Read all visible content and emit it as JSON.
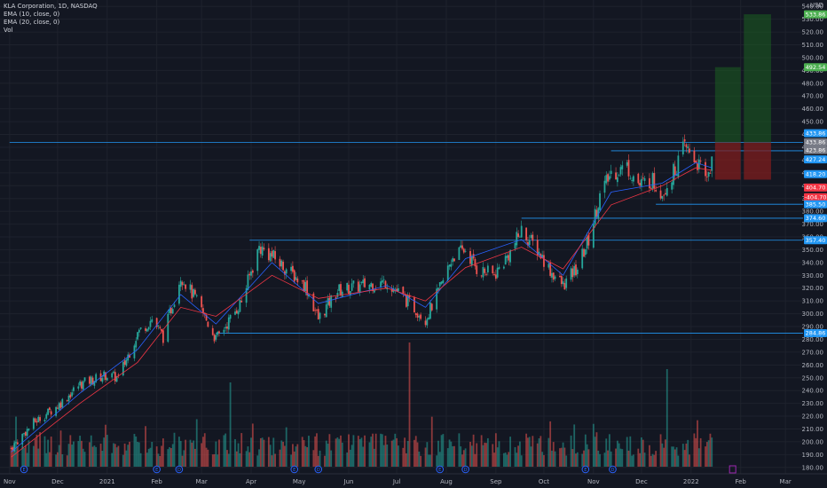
{
  "legend": {
    "title": "KLA Corporation, 1D, NASDAQ",
    "ema1": "EMA (10, close, 0)",
    "ema2": "EMA (20, close, 0)",
    "vol": "Vol"
  },
  "currency": "USD",
  "colors": {
    "background": "#131722",
    "up": "#26a69a",
    "down": "#ef5350",
    "ema_fast": "#2962ff",
    "ema_slow": "#f23645",
    "level_line": "#2196f3",
    "target_zone": "#1b5e20",
    "stop_zone": "#7f1d1d",
    "event_icon": "#2962ff",
    "future_marker": "#9c27b0"
  },
  "chart_data": {
    "type": "candlestick",
    "x_axis_labels": [
      "Nov",
      "Dec",
      "2021",
      "Feb",
      "Mar",
      "Apr",
      "May",
      "Jun",
      "Jul",
      "Aug",
      "Sep",
      "Oct",
      "Nov",
      "Dec",
      "2022",
      "Feb",
      "Mar"
    ],
    "x_axis_dates": [
      "2020-11-01",
      "2020-12-01",
      "2021-01-01",
      "2021-02-01",
      "2021-03-01",
      "2021-04-01",
      "2021-05-01",
      "2021-06-01",
      "2021-07-01",
      "2021-08-01",
      "2021-09-01",
      "2021-10-01",
      "2021-11-01",
      "2021-12-01",
      "2022-01-01",
      "2022-02-01",
      "2022-03-01"
    ],
    "y_ticks": [
      180,
      190,
      200,
      210,
      220,
      230,
      240,
      250,
      260,
      270,
      280,
      290,
      300,
      310,
      320,
      330,
      340,
      350,
      360,
      370,
      380,
      390,
      400,
      410,
      420,
      430,
      440,
      450,
      460,
      470,
      480,
      490,
      500,
      510,
      520,
      530,
      540
    ],
    "ylim": [
      175,
      545
    ],
    "price_series": [
      {
        "date": "2020-11-02",
        "close": 195
      },
      {
        "date": "2020-11-16",
        "close": 215
      },
      {
        "date": "2020-12-01",
        "close": 228
      },
      {
        "date": "2020-12-15",
        "close": 245
      },
      {
        "date": "2020-12-31",
        "close": 252
      },
      {
        "date": "2021-01-08",
        "close": 250
      },
      {
        "date": "2021-01-20",
        "close": 285
      },
      {
        "date": "2021-01-29",
        "close": 296
      },
      {
        "date": "2021-02-05",
        "close": 282
      },
      {
        "date": "2021-02-16",
        "close": 330
      },
      {
        "date": "2021-02-25",
        "close": 312
      },
      {
        "date": "2021-03-04",
        "close": 295
      },
      {
        "date": "2021-03-10",
        "close": 280
      },
      {
        "date": "2021-03-19",
        "close": 296
      },
      {
        "date": "2021-03-26",
        "close": 310
      },
      {
        "date": "2021-04-06",
        "close": 352
      },
      {
        "date": "2021-04-14",
        "close": 345
      },
      {
        "date": "2021-04-23",
        "close": 335
      },
      {
        "date": "2021-05-05",
        "close": 322
      },
      {
        "date": "2021-05-13",
        "close": 296
      },
      {
        "date": "2021-05-25",
        "close": 318
      },
      {
        "date": "2021-06-10",
        "close": 322
      },
      {
        "date": "2021-06-25",
        "close": 325
      },
      {
        "date": "2021-07-09",
        "close": 308
      },
      {
        "date": "2021-07-19",
        "close": 296
      },
      {
        "date": "2021-07-29",
        "close": 322
      },
      {
        "date": "2021-08-05",
        "close": 345
      },
      {
        "date": "2021-08-13",
        "close": 350
      },
      {
        "date": "2021-08-20",
        "close": 335
      },
      {
        "date": "2021-08-31",
        "close": 330
      },
      {
        "date": "2021-09-10",
        "close": 348
      },
      {
        "date": "2021-09-17",
        "close": 365
      },
      {
        "date": "2021-09-27",
        "close": 350
      },
      {
        "date": "2021-10-06",
        "close": 332
      },
      {
        "date": "2021-10-13",
        "close": 322
      },
      {
        "date": "2021-10-22",
        "close": 336
      },
      {
        "date": "2021-10-29",
        "close": 358
      },
      {
        "date": "2021-11-05",
        "close": 392
      },
      {
        "date": "2021-11-12",
        "close": 410
      },
      {
        "date": "2021-11-22",
        "close": 415
      },
      {
        "date": "2021-11-30",
        "close": 400
      },
      {
        "date": "2021-12-07",
        "close": 405
      },
      {
        "date": "2021-12-14",
        "close": 395
      },
      {
        "date": "2021-12-21",
        "close": 410
      },
      {
        "date": "2021-12-28",
        "close": 430
      },
      {
        "date": "2022-01-04",
        "close": 420
      },
      {
        "date": "2022-01-10",
        "close": 405
      },
      {
        "date": "2022-01-14",
        "close": 418
      }
    ],
    "ema_fast": [
      {
        "date": "2020-11-02",
        "value": 192
      },
      {
        "date": "2020-12-15",
        "value": 238
      },
      {
        "date": "2021-01-20",
        "value": 272
      },
      {
        "date": "2021-02-16",
        "value": 315
      },
      {
        "date": "2021-03-10",
        "value": 292
      },
      {
        "date": "2021-04-14",
        "value": 340
      },
      {
        "date": "2021-05-13",
        "value": 308
      },
      {
        "date": "2021-06-25",
        "value": 322
      },
      {
        "date": "2021-07-19",
        "value": 305
      },
      {
        "date": "2021-08-13",
        "value": 343
      },
      {
        "date": "2021-09-17",
        "value": 358
      },
      {
        "date": "2021-10-13",
        "value": 330
      },
      {
        "date": "2021-11-12",
        "value": 395
      },
      {
        "date": "2021-12-14",
        "value": 402
      },
      {
        "date": "2022-01-04",
        "value": 418
      },
      {
        "date": "2022-01-14",
        "value": 414
      }
    ],
    "ema_slow": [
      {
        "date": "2020-11-02",
        "value": 188
      },
      {
        "date": "2020-12-15",
        "value": 230
      },
      {
        "date": "2021-01-20",
        "value": 262
      },
      {
        "date": "2021-02-16",
        "value": 305
      },
      {
        "date": "2021-03-10",
        "value": 298
      },
      {
        "date": "2021-04-14",
        "value": 330
      },
      {
        "date": "2021-05-13",
        "value": 312
      },
      {
        "date": "2021-06-25",
        "value": 320
      },
      {
        "date": "2021-07-19",
        "value": 310
      },
      {
        "date": "2021-08-13",
        "value": 336
      },
      {
        "date": "2021-09-17",
        "value": 352
      },
      {
        "date": "2021-10-13",
        "value": 335
      },
      {
        "date": "2021-11-12",
        "value": 385
      },
      {
        "date": "2021-12-14",
        "value": 400
      },
      {
        "date": "2022-01-04",
        "value": 414
      },
      {
        "date": "2022-01-14",
        "value": 412
      }
    ],
    "horizontal_levels": [
      {
        "value": 433.86,
        "from": "2020-11-01",
        "line_color": "#2196f3"
      },
      {
        "value": 427.24,
        "from": "2021-11-12",
        "line_color": "#2196f3"
      },
      {
        "value": 385.5,
        "from": "2021-12-10",
        "line_color": "#2196f3"
      },
      {
        "value": 374.6,
        "from": "2021-09-17",
        "line_color": "#2196f3"
      },
      {
        "value": 357.4,
        "from": "2021-03-31",
        "line_color": "#2196f3"
      },
      {
        "value": 284.86,
        "from": "2021-03-10",
        "line_color": "#2196f3"
      }
    ],
    "price_tags": [
      {
        "label": "533.86",
        "value": 533.86,
        "color": "#4caf50"
      },
      {
        "label": "492.54",
        "value": 492.54,
        "color": "#4caf50"
      },
      {
        "label": "433.86",
        "value": 441,
        "color": "#2196f3"
      },
      {
        "label": "433.86",
        "value": 433.86,
        "color": "#787b86"
      },
      {
        "label": "423.86",
        "value": 427.8,
        "color": "#787b86"
      },
      {
        "label": "427.24",
        "value": 420.5,
        "color": "#2196f3"
      },
      {
        "label": "418.20",
        "value": 409,
        "color": "#2196f3"
      },
      {
        "label": "404.70",
        "value": 398.5,
        "color": "#f23645"
      },
      {
        "label": "-404.70",
        "value": 391,
        "color": "#f23645"
      },
      {
        "label": "385.50",
        "value": 385.5,
        "color": "#2196f3"
      },
      {
        "label": "374.60",
        "value": 374.6,
        "color": "#2196f3"
      },
      {
        "label": "357.40",
        "value": 357.4,
        "color": "#2196f3"
      },
      {
        "label": "284.86",
        "value": 284.86,
        "color": "#2196f3"
      }
    ],
    "positions": [
      {
        "from": "2022-01-16",
        "to": "2022-02-01",
        "entry": 433.86,
        "target": 492.54,
        "stop": 404.7
      },
      {
        "from": "2022-02-03",
        "to": "2022-02-20",
        "entry": 433.86,
        "target": 533.86,
        "stop": 404.7
      }
    ],
    "event_markers": [
      {
        "date": "2020-11-10",
        "label": "E",
        "color": "#2962ff"
      },
      {
        "date": "2021-02-01",
        "label": "E",
        "color": "#2962ff"
      },
      {
        "date": "2021-02-15",
        "label": "D",
        "color": "#2962ff"
      },
      {
        "date": "2021-04-28",
        "label": "E",
        "color": "#2962ff"
      },
      {
        "date": "2021-05-13",
        "label": "D",
        "color": "#2962ff"
      },
      {
        "date": "2021-07-28",
        "label": "E",
        "color": "#2962ff"
      },
      {
        "date": "2021-08-13",
        "label": "D",
        "color": "#2962ff"
      },
      {
        "date": "2021-10-27",
        "label": "E",
        "color": "#2962ff"
      },
      {
        "date": "2021-11-13",
        "label": "D",
        "color": "#2962ff"
      },
      {
        "date": "2022-01-27",
        "label": "",
        "color": "#9c27b0"
      }
    ],
    "volume_note": "volume bars rendered along bottom, tallest spike near 2021-07-01"
  }
}
